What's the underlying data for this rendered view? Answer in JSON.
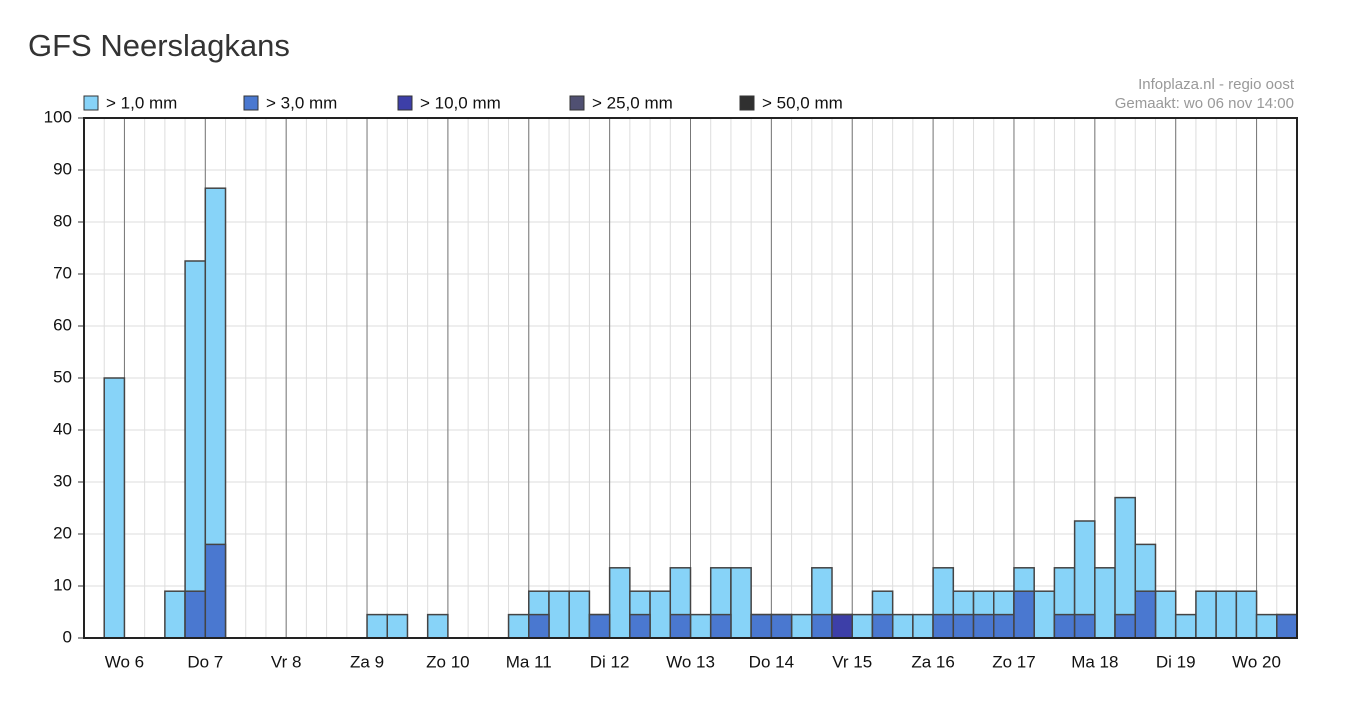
{
  "chart_data": {
    "type": "bar",
    "title": "GFS Neerslagkans",
    "source": "Infoplaza.nl - regio oost",
    "created": "Gemaakt: wo 06 nov 14:00",
    "categories": [
      null,
      null,
      "Wo 6",
      null,
      null,
      null,
      "Do 7",
      null,
      null,
      null,
      "Vr 8",
      null,
      null,
      null,
      "Za 9",
      null,
      null,
      null,
      "Zo 10",
      null,
      null,
      null,
      "Ma 11",
      null,
      null,
      null,
      "Di 12",
      null,
      null,
      null,
      "Wo 13",
      null,
      null,
      null,
      "Do 14",
      null,
      null,
      null,
      "Vr 15",
      null,
      null,
      null,
      "Za 16",
      null,
      null,
      null,
      "Zo 17",
      null,
      null,
      null,
      "Ma 18",
      null,
      null,
      null,
      "Di 19",
      null,
      null,
      null,
      "Wo 20",
      null
    ],
    "series": [
      {
        "name": "> 1,0 mm",
        "color": "#87d3f8",
        "values": [
          0,
          50,
          0,
          0,
          9,
          72.5,
          86.5,
          0,
          0,
          0,
          0,
          0,
          0,
          0,
          4.5,
          4.5,
          0,
          4.5,
          0,
          0,
          0,
          4.5,
          9,
          9,
          9,
          4.5,
          13.5,
          9,
          9,
          13.5,
          4.5,
          13.5,
          13.5,
          4.5,
          4.5,
          4.5,
          13.5,
          4.5,
          4.5,
          9,
          4.5,
          4.5,
          13.5,
          9,
          9,
          9,
          13.5,
          9,
          13.5,
          22.5,
          13.5,
          27,
          18,
          9,
          4.5,
          9,
          9,
          9,
          4.5,
          4.5
        ]
      },
      {
        "name": "> 3,0 mm",
        "color": "#4a78d0",
        "values": [
          0,
          0,
          0,
          0,
          0,
          9,
          18,
          0,
          0,
          0,
          0,
          0,
          0,
          0,
          0,
          0,
          0,
          0,
          0,
          0,
          0,
          0,
          4.5,
          0,
          0,
          4.5,
          0,
          4.5,
          0,
          4.5,
          0,
          4.5,
          0,
          4.5,
          4.5,
          0,
          4.5,
          4.5,
          0,
          4.5,
          0,
          0,
          4.5,
          4.5,
          4.5,
          4.5,
          9,
          0,
          4.5,
          4.5,
          0,
          4.5,
          9,
          0,
          0,
          0,
          0,
          0,
          0,
          4.5
        ]
      },
      {
        "name": "> 10,0 mm",
        "color": "#3d3fa8",
        "values": [
          0,
          0,
          0,
          0,
          0,
          0,
          0,
          0,
          0,
          0,
          0,
          0,
          0,
          0,
          0,
          0,
          0,
          0,
          0,
          0,
          0,
          0,
          0,
          0,
          0,
          0,
          0,
          0,
          0,
          0,
          0,
          0,
          0,
          0,
          0,
          0,
          0,
          4.5,
          0,
          0,
          0,
          0,
          0,
          0,
          0,
          0,
          0,
          0,
          0,
          0,
          0,
          0,
          0,
          0,
          0,
          0,
          0,
          0,
          0,
          0
        ]
      },
      {
        "name": "> 25,0 mm",
        "color": "#505072",
        "values": [
          0,
          0,
          0,
          0,
          0,
          0,
          0,
          0,
          0,
          0,
          0,
          0,
          0,
          0,
          0,
          0,
          0,
          0,
          0,
          0,
          0,
          0,
          0,
          0,
          0,
          0,
          0,
          0,
          0,
          0,
          0,
          0,
          0,
          0,
          0,
          0,
          0,
          0,
          0,
          0,
          0,
          0,
          0,
          0,
          0,
          0,
          0,
          0,
          0,
          0,
          0,
          0,
          0,
          0,
          0,
          0,
          0,
          0,
          0,
          0
        ]
      },
      {
        "name": "> 50,0 mm",
        "color": "#303030",
        "values": [
          0,
          0,
          0,
          0,
          0,
          0,
          0,
          0,
          0,
          0,
          0,
          0,
          0,
          0,
          0,
          0,
          0,
          0,
          0,
          0,
          0,
          0,
          0,
          0,
          0,
          0,
          0,
          0,
          0,
          0,
          0,
          0,
          0,
          0,
          0,
          0,
          0,
          0,
          0,
          0,
          0,
          0,
          0,
          0,
          0,
          0,
          0,
          0,
          0,
          0,
          0,
          0,
          0,
          0,
          0,
          0,
          0,
          0,
          0,
          0
        ]
      }
    ],
    "ylim": [
      0,
      100
    ],
    "yticks": [
      0,
      10,
      20,
      30,
      40,
      50,
      60,
      70,
      80,
      90,
      100
    ],
    "grid": true
  }
}
